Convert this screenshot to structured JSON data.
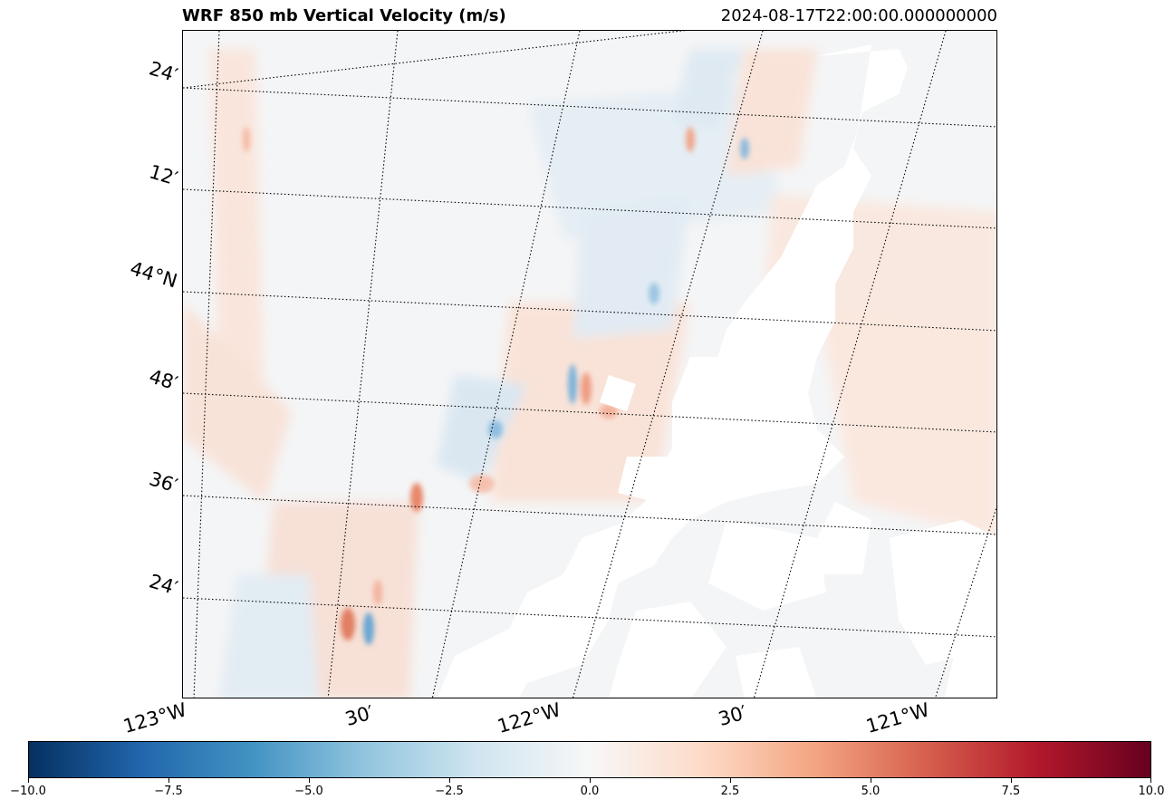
{
  "map": {
    "title": "WRF 850 mb Vertical Velocity (m/s)",
    "timestamp": "2024-08-17T22:00:00.000000000",
    "lat_labels": [
      "24′",
      "12′",
      "44°N",
      "48′",
      "36′",
      "24′"
    ],
    "lon_labels": [
      "123°W",
      "30′",
      "122°W",
      "30′",
      "121°W"
    ],
    "gridline_style": "dotted black",
    "projection": "rotated (Lambert-style) lat/lon graticule",
    "masked_region": "white (no data) strip along eastern portion, widening to the south"
  },
  "colorbar": {
    "colormap": "RdBu_r",
    "vmin": -10.0,
    "vmax": 10.0,
    "tick_labels": [
      "−10.0",
      "−7.5",
      "−5.0",
      "−2.5",
      "0.0",
      "2.5",
      "5.0",
      "7.5",
      "10.0"
    ],
    "colors": [
      "#053061",
      "#2166ac",
      "#4393c3",
      "#92c5de",
      "#d1e5f0",
      "#f7f7f7",
      "#fddbc7",
      "#f4a582",
      "#d6604d",
      "#b2182b",
      "#67001f"
    ]
  }
}
